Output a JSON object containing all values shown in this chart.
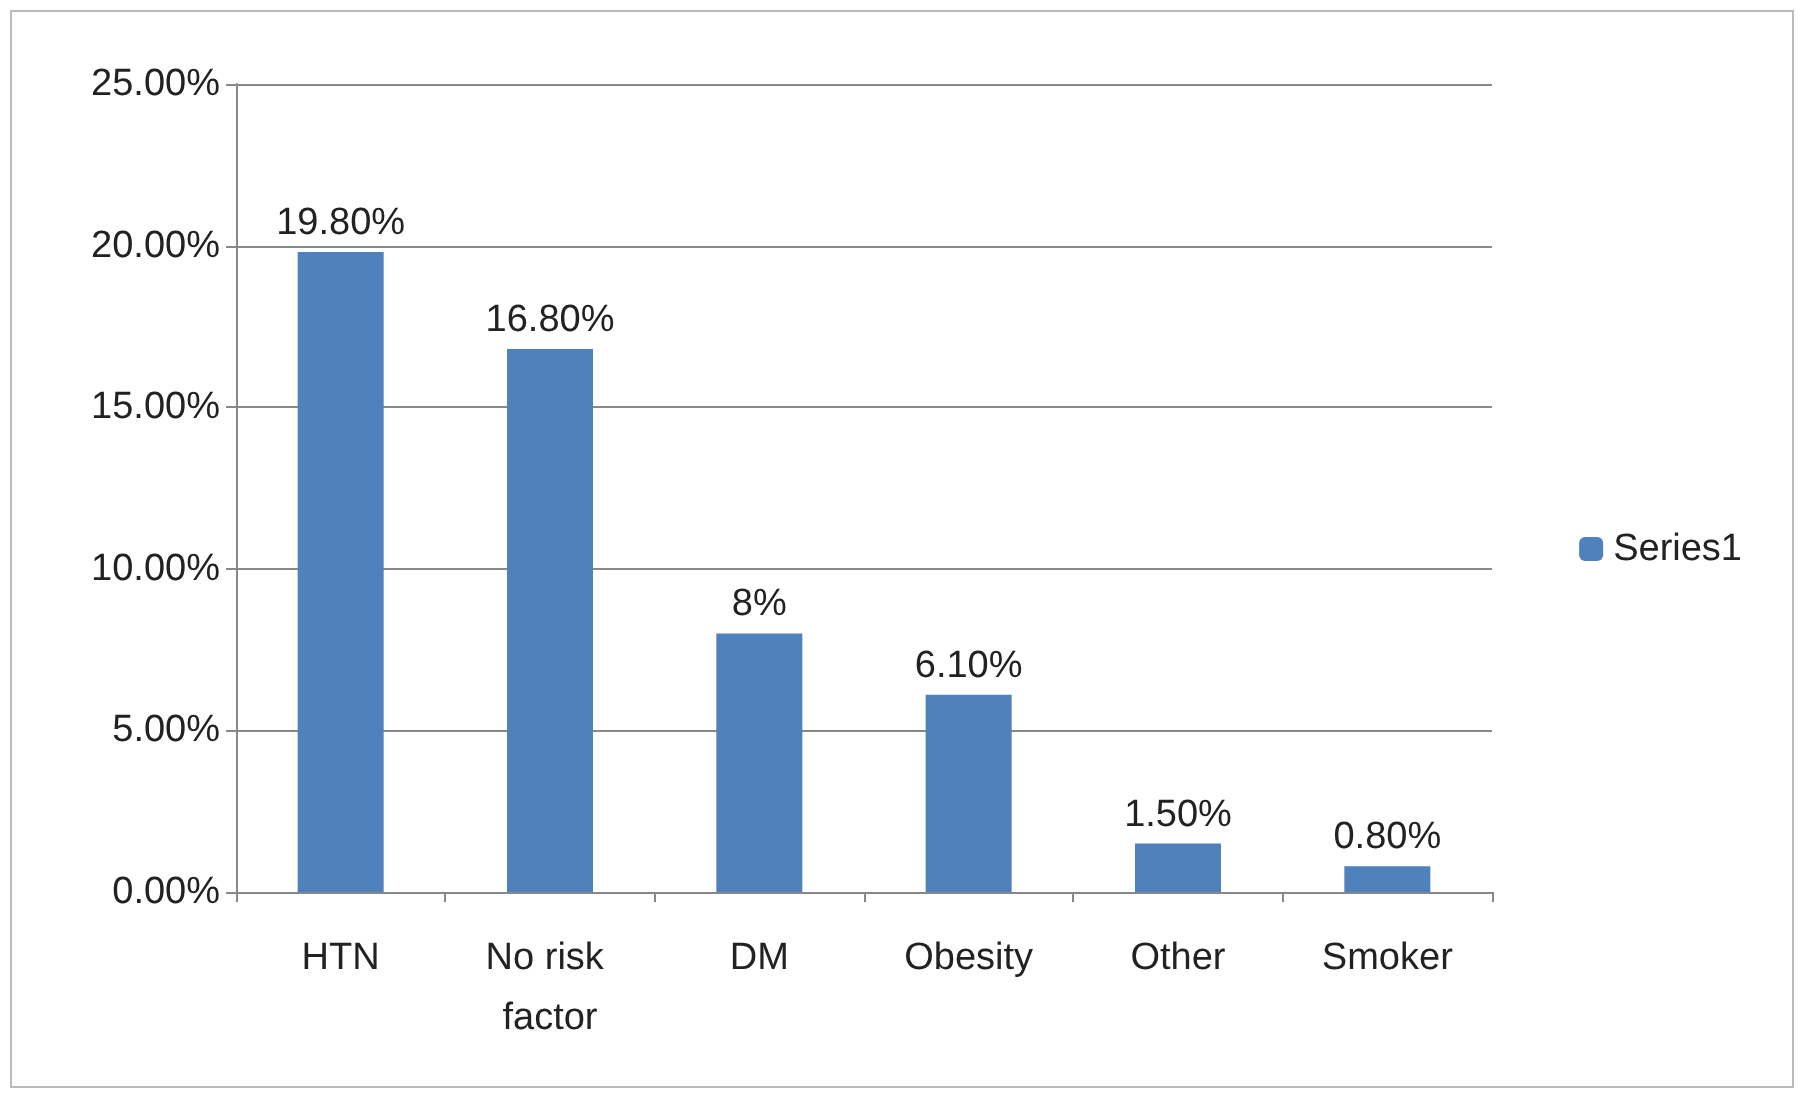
{
  "chart_data": {
    "type": "bar",
    "categories": [
      "HTN",
      "No risk factor",
      "DM",
      "Obesity",
      "Other",
      "Smoker"
    ],
    "series": [
      {
        "name": "Series1",
        "color": "#4f81bd",
        "values": [
          19.8,
          16.8,
          8,
          6.1,
          1.5,
          0.8
        ],
        "value_labels": [
          "19.80%",
          "16.80%",
          "8%",
          "6.10%",
          "1.50%",
          "0.80%"
        ]
      }
    ],
    "ylim": [
      0,
      25
    ],
    "yticks": [
      {
        "value": 0,
        "label": "0.00%"
      },
      {
        "value": 5,
        "label": "5.00%"
      },
      {
        "value": 10,
        "label": "10.00%"
      },
      {
        "value": 15,
        "label": "15.00%"
      },
      {
        "value": 20,
        "label": "20.00%"
      },
      {
        "value": 25,
        "label": "25.00%"
      }
    ],
    "grid": "y",
    "legend": "right"
  }
}
